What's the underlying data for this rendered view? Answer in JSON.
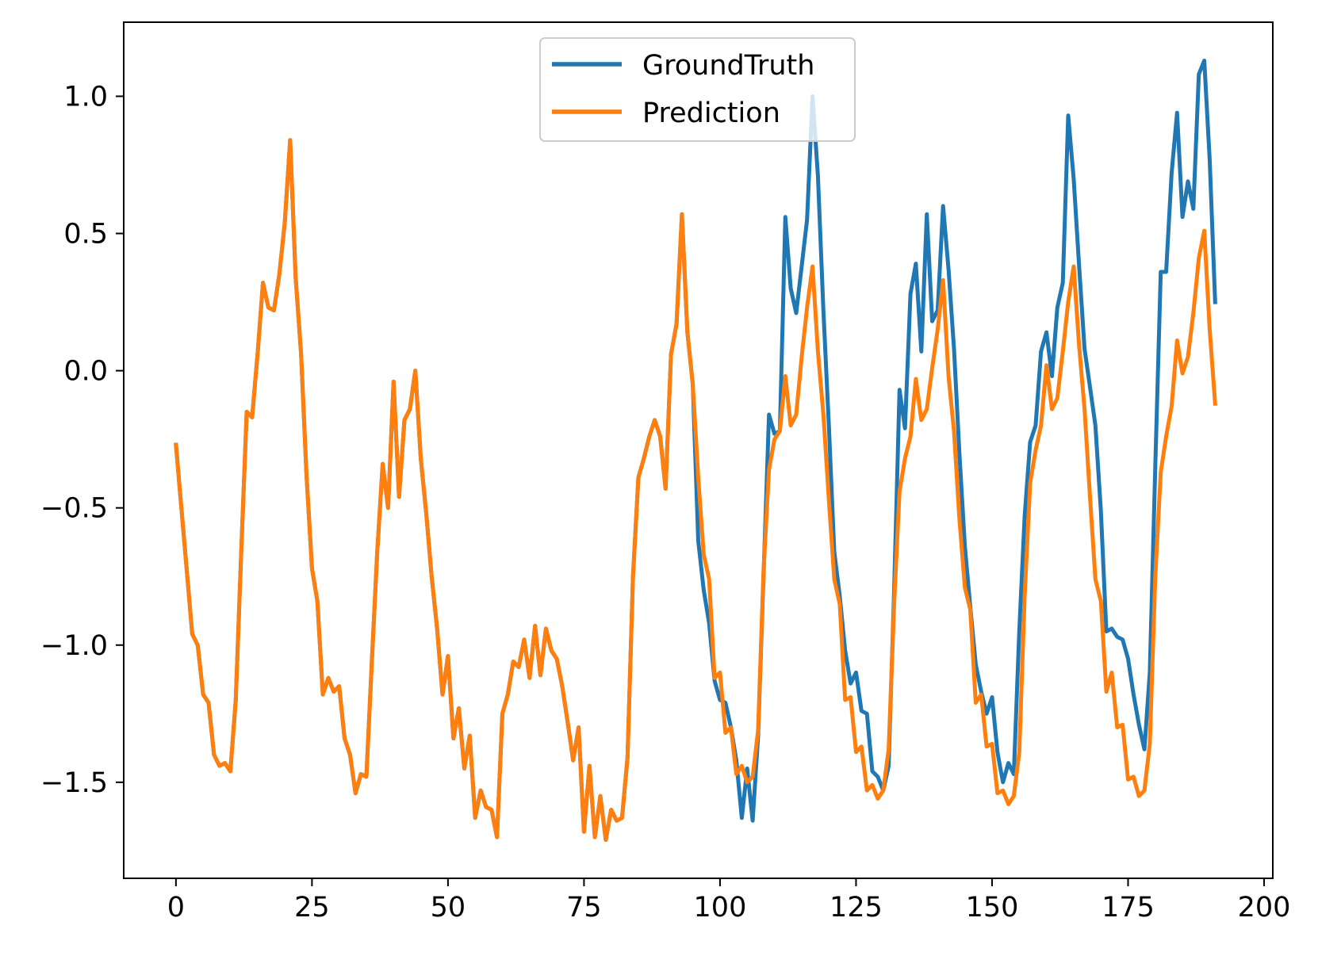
{
  "chart_data": {
    "type": "line",
    "title": "",
    "xlabel": "",
    "ylabel": "",
    "xlim": [
      -9.6,
      201.6
    ],
    "ylim": [
      -1.85,
      1.27
    ],
    "xticks": [
      0,
      25,
      50,
      75,
      100,
      125,
      150,
      175,
      200
    ],
    "yticks": [
      -1.5,
      -1.0,
      -0.5,
      0.0,
      0.5,
      1.0
    ],
    "xtick_labels": [
      "0",
      "25",
      "50",
      "75",
      "100",
      "125",
      "150",
      "175",
      "200"
    ],
    "ytick_labels": [
      "−1.5",
      "−1.0",
      "−0.5",
      "0.0",
      "0.5",
      "1.0"
    ],
    "grid": false,
    "legend": "upper-center",
    "series": [
      {
        "name": "GroundTruth",
        "color": "#1f77b4",
        "x": [
          0,
          1,
          2,
          3,
          4,
          5,
          6,
          7,
          8,
          9,
          10,
          11,
          12,
          13,
          14,
          15,
          16,
          17,
          18,
          19,
          20,
          21,
          22,
          23,
          24,
          25,
          26,
          27,
          28,
          29,
          30,
          31,
          32,
          33,
          34,
          35,
          36,
          37,
          38,
          39,
          40,
          41,
          42,
          43,
          44,
          45,
          46,
          47,
          48,
          49,
          50,
          51,
          52,
          53,
          54,
          55,
          56,
          57,
          58,
          59,
          60,
          61,
          62,
          63,
          64,
          65,
          66,
          67,
          68,
          69,
          70,
          71,
          72,
          73,
          74,
          75,
          76,
          77,
          78,
          79,
          80,
          81,
          82,
          83,
          84,
          85,
          86,
          87,
          88,
          89,
          90,
          91,
          92,
          93,
          94,
          95,
          96,
          97,
          98,
          99,
          100,
          101,
          102,
          103,
          104,
          105,
          106,
          107,
          108,
          109,
          110,
          111,
          112,
          113,
          114,
          115,
          116,
          117,
          118,
          119,
          120,
          121,
          122,
          123,
          124,
          125,
          126,
          127,
          128,
          129,
          130,
          131,
          132,
          133,
          134,
          135,
          136,
          137,
          138,
          139,
          140,
          141,
          142,
          143,
          144,
          145,
          146,
          147,
          148,
          149,
          150,
          151,
          152,
          153,
          154,
          155,
          156,
          157,
          158,
          159,
          160,
          161,
          162,
          163,
          164,
          165,
          166,
          167,
          168,
          169,
          170,
          171,
          172,
          173,
          174,
          175,
          176,
          177,
          178,
          179,
          180,
          181,
          182,
          183,
          184,
          185,
          186,
          187,
          188,
          189,
          190,
          191
        ],
        "y": [
          -0.27,
          -0.5,
          -0.73,
          -0.96,
          -1.0,
          -1.18,
          -1.21,
          -1.4,
          -1.44,
          -1.43,
          -1.46,
          -1.2,
          -0.66,
          -0.15,
          -0.17,
          0.06,
          0.32,
          0.23,
          0.22,
          0.35,
          0.54,
          0.84,
          0.34,
          0.06,
          -0.38,
          -0.72,
          -0.84,
          -1.18,
          -1.12,
          -1.17,
          -1.15,
          -1.34,
          -1.4,
          -1.54,
          -1.47,
          -1.48,
          -1.06,
          -0.66,
          -0.34,
          -0.5,
          -0.04,
          -0.46,
          -0.18,
          -0.14,
          0.0,
          -0.32,
          -0.52,
          -0.75,
          -0.94,
          -1.18,
          -1.04,
          -1.34,
          -1.23,
          -1.45,
          -1.33,
          -1.63,
          -1.53,
          -1.59,
          -1.6,
          -1.7,
          -1.25,
          -1.18,
          -1.06,
          -1.08,
          -0.98,
          -1.12,
          -0.93,
          -1.11,
          -0.94,
          -1.02,
          -1.05,
          -1.15,
          -1.28,
          -1.42,
          -1.3,
          -1.68,
          -1.44,
          -1.7,
          -1.55,
          -1.71,
          -1.6,
          -1.64,
          -1.63,
          -1.41,
          -0.75,
          -0.39,
          -0.32,
          -0.24,
          -0.18,
          -0.24,
          -0.43,
          0.06,
          0.17,
          0.57,
          0.14,
          -0.05,
          -0.62,
          -0.8,
          -0.92,
          -1.13,
          -1.2,
          -1.21,
          -1.3,
          -1.42,
          -1.63,
          -1.45,
          -1.64,
          -1.33,
          -0.75,
          -0.16,
          -0.23,
          -0.22,
          0.56,
          0.3,
          0.21,
          0.38,
          0.55,
          1.0,
          0.71,
          0.22,
          -0.2,
          -0.66,
          -0.82,
          -1.02,
          -1.14,
          -1.1,
          -1.24,
          -1.25,
          -1.46,
          -1.48,
          -1.53,
          -1.44,
          -0.8,
          -0.07,
          -0.21,
          0.28,
          0.39,
          0.07,
          0.57,
          0.18,
          0.22,
          0.6,
          0.37,
          0.08,
          -0.3,
          -0.64,
          -0.86,
          -1.07,
          -1.17,
          -1.25,
          -1.19,
          -1.39,
          -1.5,
          -1.43,
          -1.47,
          -0.95,
          -0.53,
          -0.26,
          -0.2,
          0.07,
          0.14,
          -0.02,
          0.23,
          0.32,
          0.93,
          0.7,
          0.38,
          0.08,
          -0.06,
          -0.2,
          -0.51,
          -0.95,
          -0.94,
          -0.97,
          -0.98,
          -1.05,
          -1.18,
          -1.29,
          -1.38,
          -1.1,
          -0.35,
          0.36,
          0.36,
          0.72,
          0.94,
          0.56,
          0.69,
          0.59,
          1.08,
          1.13,
          0.77,
          0.25
        ]
      },
      {
        "name": "Prediction",
        "color": "#ff7f0e",
        "x": [
          0,
          1,
          2,
          3,
          4,
          5,
          6,
          7,
          8,
          9,
          10,
          11,
          12,
          13,
          14,
          15,
          16,
          17,
          18,
          19,
          20,
          21,
          22,
          23,
          24,
          25,
          26,
          27,
          28,
          29,
          30,
          31,
          32,
          33,
          34,
          35,
          36,
          37,
          38,
          39,
          40,
          41,
          42,
          43,
          44,
          45,
          46,
          47,
          48,
          49,
          50,
          51,
          52,
          53,
          54,
          55,
          56,
          57,
          58,
          59,
          60,
          61,
          62,
          63,
          64,
          65,
          66,
          67,
          68,
          69,
          70,
          71,
          72,
          73,
          74,
          75,
          76,
          77,
          78,
          79,
          80,
          81,
          82,
          83,
          84,
          85,
          86,
          87,
          88,
          89,
          90,
          91,
          92,
          93,
          94,
          95,
          96,
          97,
          98,
          99,
          100,
          101,
          102,
          103,
          104,
          105,
          106,
          107,
          108,
          109,
          110,
          111,
          112,
          113,
          114,
          115,
          116,
          117,
          118,
          119,
          120,
          121,
          122,
          123,
          124,
          125,
          126,
          127,
          128,
          129,
          130,
          131,
          132,
          133,
          134,
          135,
          136,
          137,
          138,
          139,
          140,
          141,
          142,
          143,
          144,
          145,
          146,
          147,
          148,
          149,
          150,
          151,
          152,
          153,
          154,
          155,
          156,
          157,
          158,
          159,
          160,
          161,
          162,
          163,
          164,
          165,
          166,
          167,
          168,
          169,
          170,
          171,
          172,
          173,
          174,
          175,
          176,
          177,
          178,
          179,
          180,
          181,
          182,
          183,
          184,
          185,
          186,
          187,
          188,
          189,
          190,
          191
        ],
        "y": [
          -0.27,
          -0.5,
          -0.73,
          -0.96,
          -1.0,
          -1.18,
          -1.21,
          -1.4,
          -1.44,
          -1.43,
          -1.46,
          -1.2,
          -0.66,
          -0.15,
          -0.17,
          0.06,
          0.32,
          0.23,
          0.22,
          0.35,
          0.54,
          0.84,
          0.34,
          0.06,
          -0.38,
          -0.72,
          -0.84,
          -1.18,
          -1.12,
          -1.17,
          -1.15,
          -1.34,
          -1.4,
          -1.54,
          -1.47,
          -1.48,
          -1.06,
          -0.66,
          -0.34,
          -0.5,
          -0.04,
          -0.46,
          -0.18,
          -0.14,
          0.0,
          -0.32,
          -0.52,
          -0.75,
          -0.94,
          -1.18,
          -1.04,
          -1.34,
          -1.23,
          -1.45,
          -1.33,
          -1.63,
          -1.53,
          -1.59,
          -1.6,
          -1.7,
          -1.25,
          -1.18,
          -1.06,
          -1.08,
          -0.98,
          -1.12,
          -0.93,
          -1.11,
          -0.94,
          -1.02,
          -1.05,
          -1.15,
          -1.28,
          -1.42,
          -1.3,
          -1.68,
          -1.44,
          -1.7,
          -1.55,
          -1.71,
          -1.6,
          -1.64,
          -1.63,
          -1.41,
          -0.75,
          -0.39,
          -0.32,
          -0.24,
          -0.18,
          -0.24,
          -0.43,
          0.06,
          0.17,
          0.57,
          0.14,
          -0.05,
          -0.39,
          -0.67,
          -0.76,
          -1.12,
          -1.1,
          -1.32,
          -1.3,
          -1.47,
          -1.44,
          -1.5,
          -1.48,
          -1.31,
          -0.73,
          -0.36,
          -0.25,
          -0.22,
          -0.02,
          -0.2,
          -0.16,
          0.05,
          0.23,
          0.38,
          0.07,
          -0.16,
          -0.47,
          -0.76,
          -0.85,
          -1.2,
          -1.19,
          -1.39,
          -1.37,
          -1.53,
          -1.51,
          -1.56,
          -1.53,
          -1.38,
          -0.85,
          -0.44,
          -0.32,
          -0.24,
          -0.03,
          -0.18,
          -0.14,
          0.01,
          0.15,
          0.33,
          -0.02,
          -0.22,
          -0.54,
          -0.79,
          -0.87,
          -1.21,
          -1.18,
          -1.37,
          -1.36,
          -1.54,
          -1.53,
          -1.58,
          -1.55,
          -1.39,
          -0.82,
          -0.41,
          -0.29,
          -0.2,
          0.02,
          -0.14,
          -0.1,
          0.07,
          0.25,
          0.38,
          0.09,
          -0.14,
          -0.46,
          -0.76,
          -0.84,
          -1.17,
          -1.1,
          -1.3,
          -1.29,
          -1.49,
          -1.48,
          -1.55,
          -1.53,
          -1.36,
          -0.75,
          -0.37,
          -0.24,
          -0.13,
          0.11,
          -0.01,
          0.05,
          0.21,
          0.41,
          0.51,
          0.15,
          -0.12
        ]
      }
    ]
  }
}
